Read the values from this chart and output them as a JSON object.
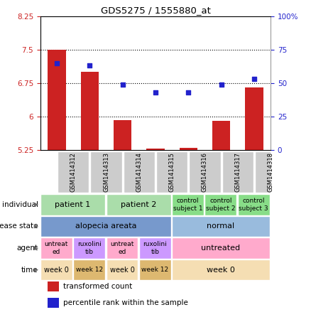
{
  "title": "GDS5275 / 1555880_at",
  "samples": [
    "GSM1414312",
    "GSM1414313",
    "GSM1414314",
    "GSM1414315",
    "GSM1414316",
    "GSM1414317",
    "GSM1414318"
  ],
  "bar_values": [
    7.5,
    7.0,
    5.92,
    5.28,
    5.3,
    5.9,
    6.65
  ],
  "dot_values": [
    65,
    63,
    49,
    43,
    43,
    49,
    53
  ],
  "ylim_left": [
    5.25,
    8.25
  ],
  "ylim_right": [
    0,
    100
  ],
  "yticks_left": [
    5.25,
    6.0,
    6.75,
    7.5,
    8.25
  ],
  "yticks_right": [
    0,
    25,
    50,
    75,
    100
  ],
  "ytick_labels_left": [
    "5.25",
    "6",
    "6.75",
    "7.5",
    "8.25"
  ],
  "ytick_labels_right": [
    "0",
    "25",
    "50",
    "75",
    "100%"
  ],
  "hlines": [
    6.0,
    6.75,
    7.5
  ],
  "bar_color": "#cc2222",
  "dot_color": "#2222cc",
  "bar_width": 0.55,
  "annotation_rows": [
    {
      "label": "individual",
      "cells": [
        {
          "span": [
            0,
            1
          ],
          "text": "patient 1",
          "color": "#aaddaa",
          "fontsize": 8
        },
        {
          "span": [
            2,
            3
          ],
          "text": "patient 2",
          "color": "#aaddaa",
          "fontsize": 8
        },
        {
          "span": [
            4,
            4
          ],
          "text": "control\nsubject 1",
          "color": "#88dd88",
          "fontsize": 6.5
        },
        {
          "span": [
            5,
            5
          ],
          "text": "control\nsubject 2",
          "color": "#88dd88",
          "fontsize": 6.5
        },
        {
          "span": [
            6,
            6
          ],
          "text": "control\nsubject 3",
          "color": "#88dd88",
          "fontsize": 6.5
        }
      ]
    },
    {
      "label": "disease state",
      "cells": [
        {
          "span": [
            0,
            3
          ],
          "text": "alopecia areata",
          "color": "#7799cc",
          "fontsize": 8
        },
        {
          "span": [
            4,
            6
          ],
          "text": "normal",
          "color": "#99bbdd",
          "fontsize": 8
        }
      ]
    },
    {
      "label": "agent",
      "cells": [
        {
          "span": [
            0,
            0
          ],
          "text": "untreat\ned",
          "color": "#ffaacc",
          "fontsize": 6.5
        },
        {
          "span": [
            1,
            1
          ],
          "text": "ruxolini\ntib",
          "color": "#cc99ff",
          "fontsize": 6.5
        },
        {
          "span": [
            2,
            2
          ],
          "text": "untreat\ned",
          "color": "#ffaacc",
          "fontsize": 6.5
        },
        {
          "span": [
            3,
            3
          ],
          "text": "ruxolini\ntib",
          "color": "#cc99ff",
          "fontsize": 6.5
        },
        {
          "span": [
            4,
            6
          ],
          "text": "untreated",
          "color": "#ffaacc",
          "fontsize": 8
        }
      ]
    },
    {
      "label": "time",
      "cells": [
        {
          "span": [
            0,
            0
          ],
          "text": "week 0",
          "color": "#f5deb3",
          "fontsize": 7
        },
        {
          "span": [
            1,
            1
          ],
          "text": "week 12",
          "color": "#ddb870",
          "fontsize": 6.5
        },
        {
          "span": [
            2,
            2
          ],
          "text": "week 0",
          "color": "#f5deb3",
          "fontsize": 7
        },
        {
          "span": [
            3,
            3
          ],
          "text": "week 12",
          "color": "#ddb870",
          "fontsize": 6.5
        },
        {
          "span": [
            4,
            6
          ],
          "text": "week 0",
          "color": "#f5deb3",
          "fontsize": 8
        }
      ]
    }
  ],
  "sample_box_color": "#cccccc",
  "legend_items": [
    {
      "color": "#cc2222",
      "label": "transformed count"
    },
    {
      "color": "#2222cc",
      "label": "percentile rank within the sample"
    }
  ],
  "fig_width": 4.38,
  "fig_height": 4.53,
  "dpi": 100
}
